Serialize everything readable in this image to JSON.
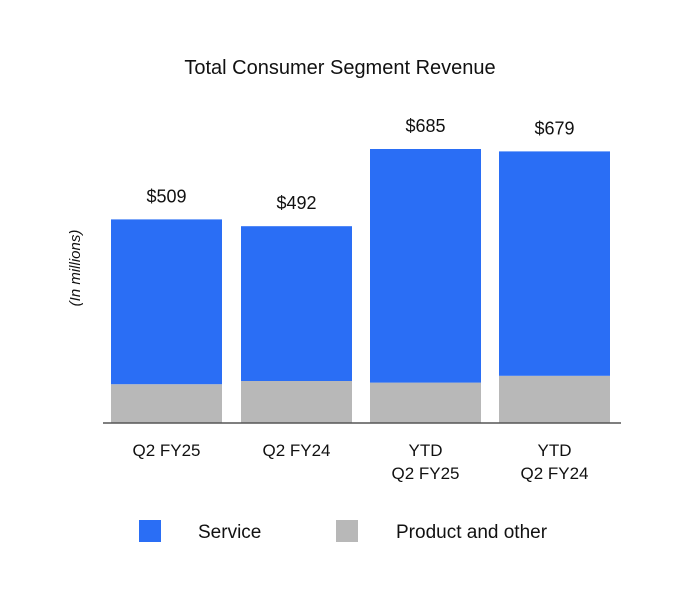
{
  "chart_data": {
    "type": "bar",
    "stacked": true,
    "title": "Total Consumer Segment Revenue",
    "xlabel": "",
    "ylabel": "(In millions)",
    "categories": [
      [
        "Q2 FY25"
      ],
      [
        "Q2 FY24"
      ],
      [
        "YTD",
        "Q2 FY25"
      ],
      [
        "YTD",
        "Q2 FY24"
      ]
    ],
    "totals": [
      "$509",
      "$492",
      "$685",
      "$679"
    ],
    "series": [
      {
        "name": "Product and other",
        "color": "#B8B8B8",
        "values": [
          97,
          105,
          101,
          118
        ]
      },
      {
        "name": "Service",
        "color": "#2A6EF5",
        "values": [
          412,
          387,
          584,
          561
        ]
      }
    ],
    "ylim": [
      0,
      800
    ],
    "grid": false,
    "legend_position": "bottom"
  }
}
